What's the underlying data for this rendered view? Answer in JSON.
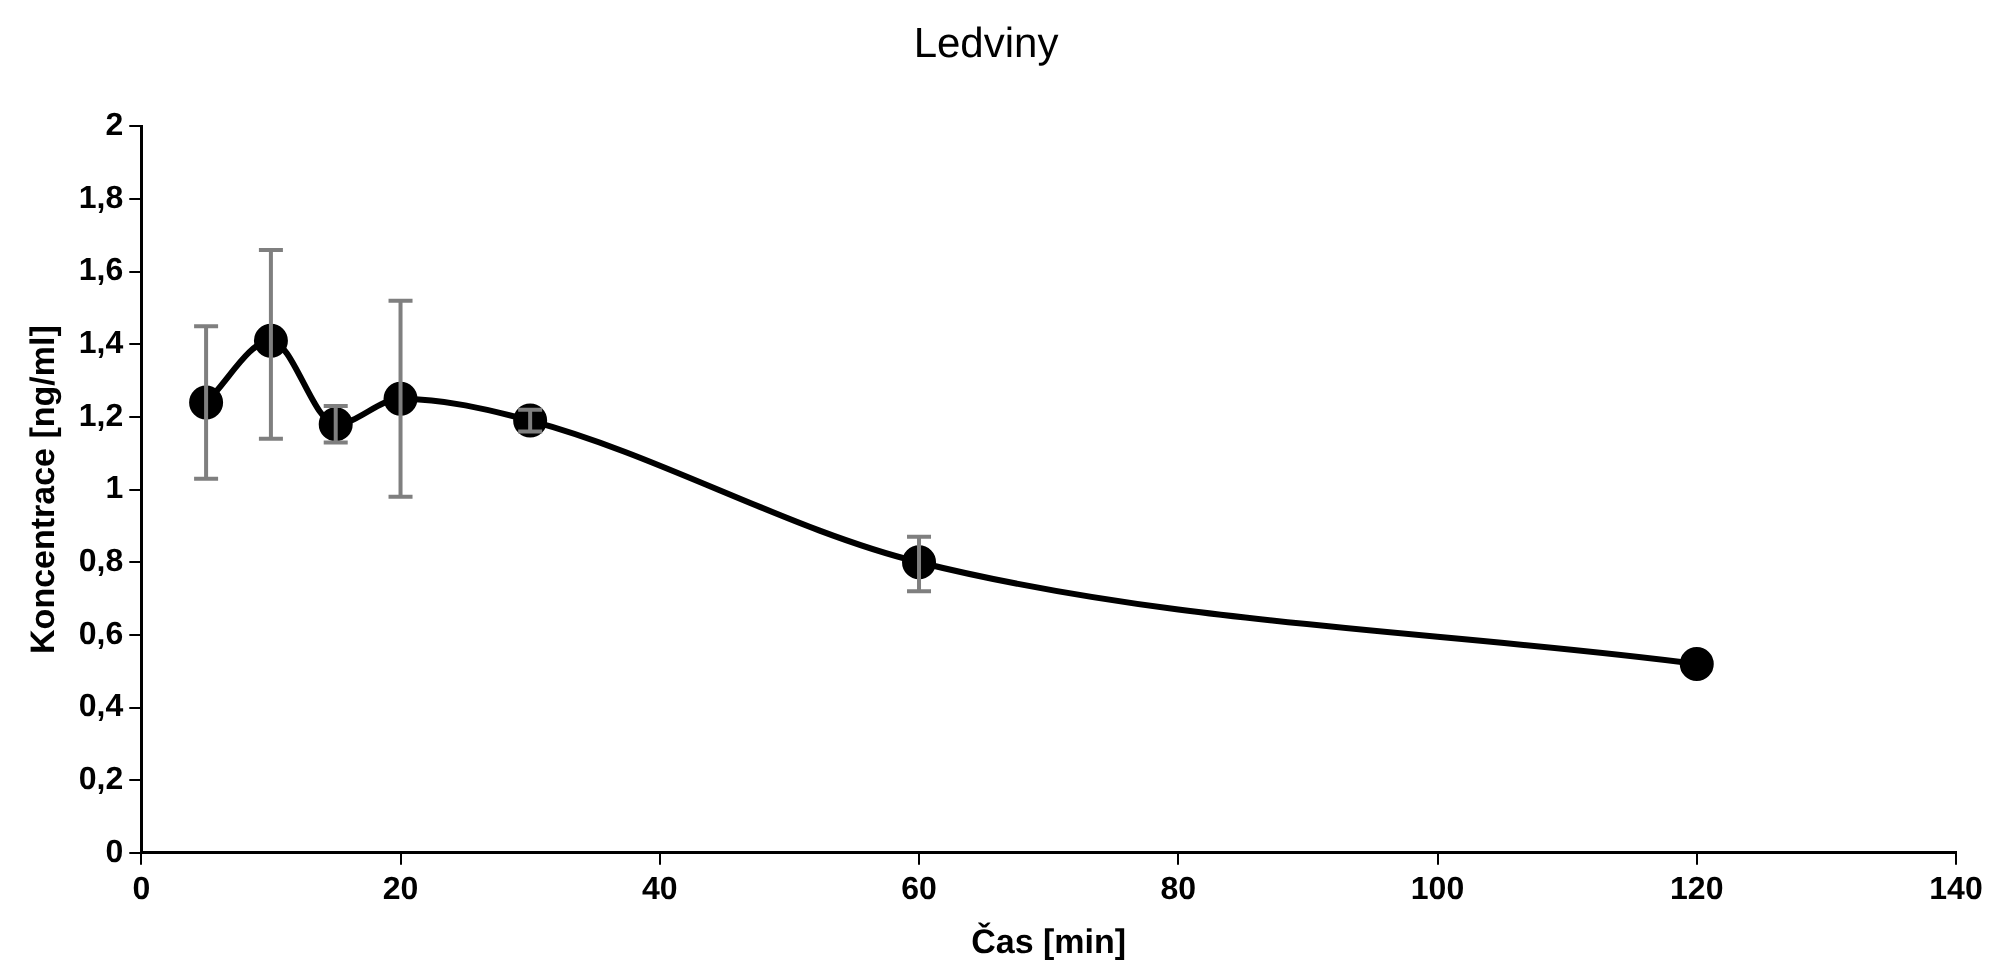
{
  "chart_data": {
    "type": "line",
    "title": "Ledviny",
    "xlabel": "Čas [min]",
    "ylabel": "Koncentrace [ng/ml]",
    "x": [
      5,
      10,
      15,
      20,
      30,
      60,
      120
    ],
    "series": [
      {
        "color": "#000000",
        "values": [
          1.24,
          1.41,
          1.18,
          1.25,
          1.19,
          0.8,
          0.52
        ],
        "errors": [
          [
            1.03,
            1.45
          ],
          [
            1.14,
            1.66
          ],
          [
            1.13,
            1.23
          ],
          [
            0.98,
            1.52
          ],
          [
            1.16,
            1.22
          ],
          [
            0.72,
            0.87
          ],
          null
        ]
      }
    ],
    "xlim": [
      0,
      140
    ],
    "xticks": [
      0,
      20,
      40,
      60,
      80,
      100,
      120,
      140
    ],
    "ylim": [
      0,
      2
    ],
    "yticks": [
      {
        "value": 0,
        "label": "0"
      },
      {
        "value": 0.2,
        "label": "0,2"
      },
      {
        "value": 0.4,
        "label": "0,4"
      },
      {
        "value": 0.6,
        "label": "0,6"
      },
      {
        "value": 0.8,
        "label": "0,8"
      },
      {
        "value": 1,
        "label": "1"
      },
      {
        "value": 1.2,
        "label": "1,2"
      },
      {
        "value": 1.4,
        "label": "1,4"
      },
      {
        "value": 1.6,
        "label": "1,6"
      },
      {
        "value": 1.8,
        "label": "1,8"
      },
      {
        "value": 2,
        "label": "2"
      }
    ],
    "grid": false,
    "legend": false,
    "marker": "circle",
    "line_style": "solid"
  }
}
